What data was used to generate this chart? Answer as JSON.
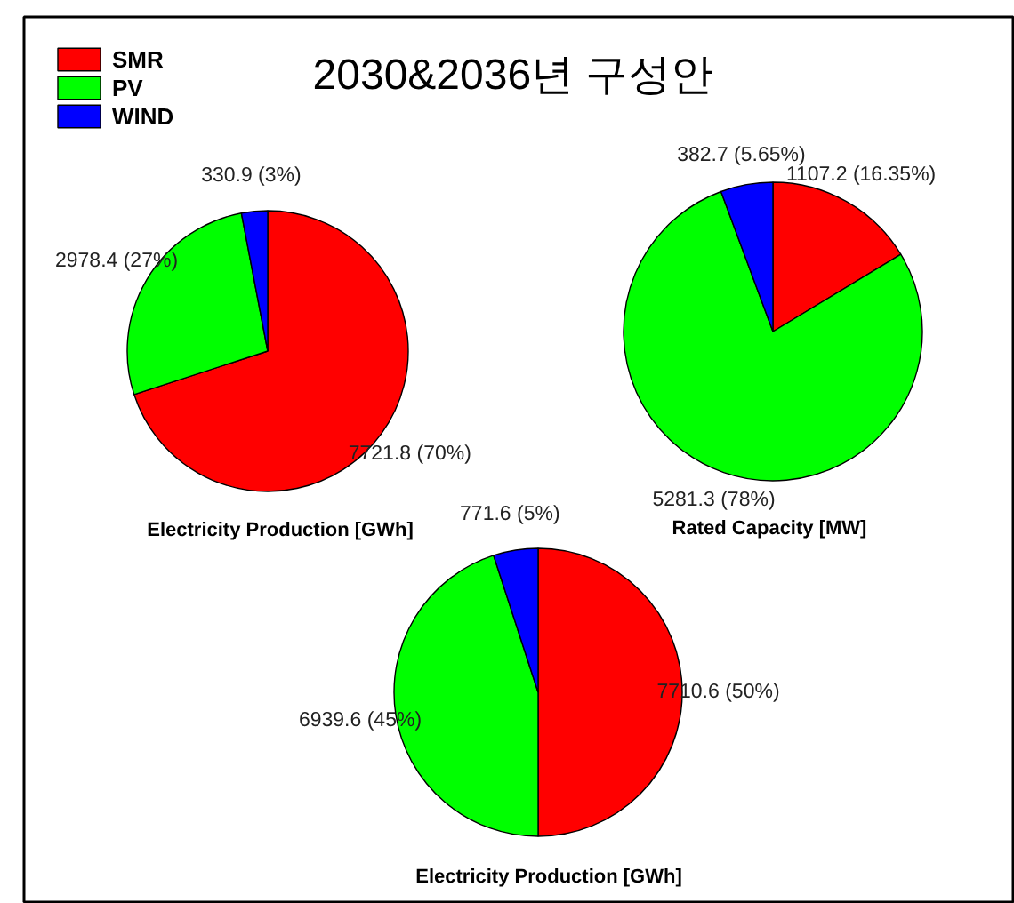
{
  "chart_data": [
    {
      "type": "pie",
      "title": "2030&2036년 구성안",
      "xlabel": "Electricity Production [GWh]",
      "categories": [
        "SMR",
        "PV",
        "WIND"
      ],
      "values": [
        7721.8,
        2978.4,
        330.9
      ],
      "colors": [
        "#ff0000",
        "#00ff00",
        "#0000ff"
      ],
      "value_labels": [
        "7721.8 (70%)",
        "2978.4 (27%)",
        "330.9 (3%)"
      ],
      "legend": "top left"
    },
    {
      "type": "pie",
      "xlabel": "Rated Capacity [MW]",
      "categories": [
        null,
        null,
        null
      ],
      "values": [
        1107.2,
        5281.3,
        382.7
      ],
      "colors": [
        "#ff0000",
        "#00ff00",
        "#0000ff"
      ],
      "value_labels": [
        "1107.2 (16.35%)",
        "5281.3 (78%)",
        "382.7 (5.65%)"
      ]
    },
    {
      "type": "pie",
      "xlabel": "Electricity Production [GWh]",
      "categories": [
        null,
        null,
        null
      ],
      "values": [
        7710.6,
        6939.6,
        771.6
      ],
      "colors": [
        "#ff0000",
        "#00ff00",
        "#0000ff"
      ],
      "value_labels": [
        "7710.6 (50%)",
        "6939.6 (45%)",
        "771.6 (5%)"
      ]
    }
  ]
}
